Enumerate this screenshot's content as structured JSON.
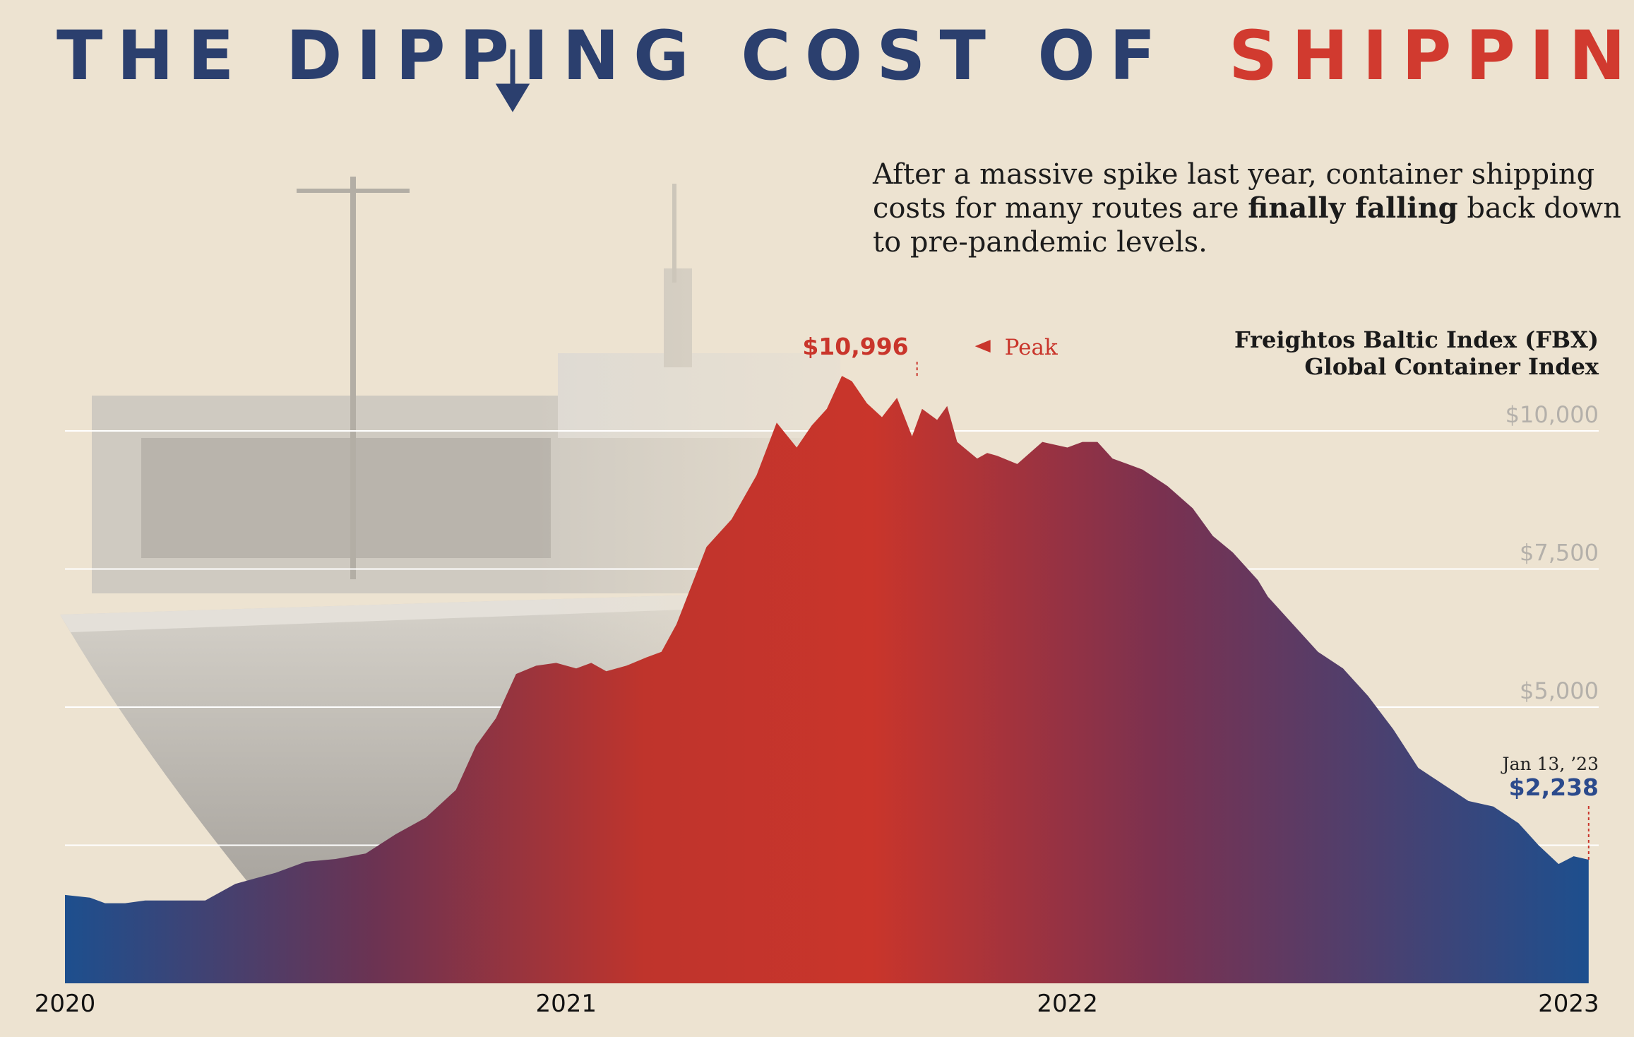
{
  "title": {
    "part1": "THE DIPPING COST OF",
    "part2": "SHIPPING",
    "part1_color": "#2b3f6e",
    "part2_color": "#d13a2f"
  },
  "subtitle": {
    "line1": "After a massive spike last year, container shipping",
    "line2_pre": "costs for many routes are ",
    "line2_bold": "finally falling",
    "line2_post": " back down",
    "line3": "to pre-pandemic levels."
  },
  "legend": {
    "line1": "Freightos Baltic Index (FBX)",
    "line2": "Global Container Index"
  },
  "annotations": {
    "peak_value": "$10,996",
    "peak_label": "Peak",
    "last_date": "Jan 13, ’23",
    "last_value": "$2,238"
  },
  "colors": {
    "background": "#ede3d1",
    "red": "#c9352b",
    "blue": "#1d4f8e",
    "mid": "#6a3353",
    "grid": "#ffffff"
  },
  "chart_data": {
    "type": "area",
    "title": "THE DIPPING COST OF SHIPPING",
    "series_name": "Freightos Baltic Index (FBX) Global Container Index",
    "x_unit": "year",
    "xlim": [
      2020.0,
      2023.06
    ],
    "ylim": [
      0,
      11000
    ],
    "yticks": [
      {
        "value": 10000,
        "label": "$10,000"
      },
      {
        "value": 7500,
        "label": "$7,500"
      },
      {
        "value": 5000,
        "label": "$5,000"
      }
    ],
    "xticks": [
      {
        "value": 2020.0,
        "label": "2020"
      },
      {
        "value": 2021.0,
        "label": "2021"
      },
      {
        "value": 2022.0,
        "label": "2022"
      },
      {
        "value": 2023.0,
        "label": "2023"
      }
    ],
    "peak": {
      "x": 2021.7,
      "value": 10996
    },
    "last": {
      "x": 2023.04,
      "value": 2238
    },
    "x": [
      2020.0,
      2020.05,
      2020.08,
      2020.12,
      2020.16,
      2020.22,
      2020.28,
      2020.34,
      2020.38,
      2020.42,
      2020.48,
      2020.54,
      2020.6,
      2020.66,
      2020.72,
      2020.78,
      2020.82,
      2020.86,
      2020.9,
      2020.94,
      2020.98,
      2021.02,
      2021.05,
      2021.08,
      2021.12,
      2021.16,
      2021.19,
      2021.22,
      2021.25,
      2021.28,
      2021.33,
      2021.38,
      2021.42,
      2021.46,
      2021.49,
      2021.52,
      2021.55,
      2021.57,
      2021.6,
      2021.63,
      2021.66,
      2021.69,
      2021.71,
      2021.74,
      2021.76,
      2021.78,
      2021.8,
      2021.82,
      2021.84,
      2021.86,
      2021.9,
      2021.95,
      2022.0,
      2022.03,
      2022.06,
      2022.09,
      2022.12,
      2022.15,
      2022.2,
      2022.25,
      2022.29,
      2022.33,
      2022.36,
      2022.38,
      2022.4,
      2022.42,
      2022.45,
      2022.5,
      2022.55,
      2022.6,
      2022.65,
      2022.7,
      2022.75,
      2022.8,
      2022.85,
      2022.9,
      2022.94,
      2022.98,
      2023.01,
      2023.04
    ],
    "values": [
      1600,
      1550,
      1450,
      1450,
      1500,
      1500,
      1500,
      1800,
      1900,
      2000,
      2200,
      2250,
      2350,
      2700,
      3000,
      3500,
      4300,
      4800,
      5600,
      5750,
      5800,
      5700,
      5800,
      5650,
      5750,
      5900,
      6000,
      6500,
      7200,
      7900,
      8400,
      9200,
      10150,
      9700,
      10100,
      10400,
      10996,
      10900,
      10500,
      10250,
      10600,
      9900,
      10400,
      10200,
      10450,
      9800,
      9650,
      9500,
      9600,
      9550,
      9400,
      9800,
      9700,
      9800,
      9800,
      9500,
      9400,
      9300,
      9000,
      8600,
      8100,
      7800,
      7500,
      7300,
      7000,
      6800,
      6500,
      6000,
      5700,
      5200,
      4600,
      3900,
      3600,
      3300,
      3200,
      2900,
      2500,
      2160,
      2300,
      2238
    ]
  }
}
